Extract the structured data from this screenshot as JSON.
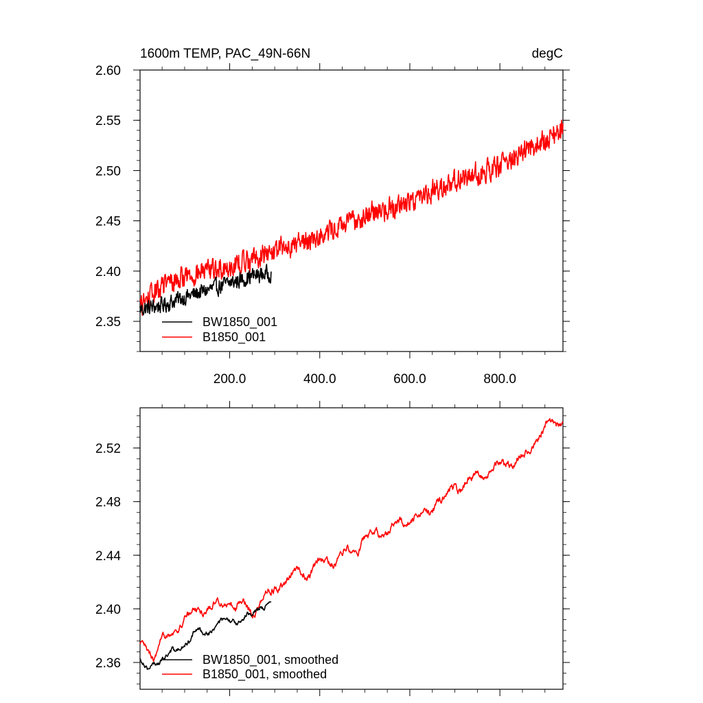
{
  "chart_data": [
    {
      "type": "line",
      "title": "1600m TEMP, PAC_49N-66N",
      "units": "degC",
      "xlabel": "",
      "ylabel": "",
      "xlim": [
        1,
        940
      ],
      "ylim": [
        2.32,
        2.6
      ],
      "xticks": [
        200,
        400,
        600,
        800
      ],
      "xtick_labels": [
        "200.0",
        "400.0",
        "600.0",
        "800.0"
      ],
      "yticks": [
        2.35,
        2.4,
        2.45,
        2.5,
        2.55,
        2.6
      ],
      "ytick_labels": [
        "2.35",
        "2.40",
        "2.45",
        "2.50",
        "2.55",
        "2.60"
      ],
      "legend_position": "bottom-left",
      "series": [
        {
          "name": "BW1850_001",
          "color": "#000000",
          "x_start": 1,
          "x_end": 292,
          "trend": [
            [
              1,
              2.362
            ],
            [
              50,
              2.366
            ],
            [
              100,
              2.374
            ],
            [
              150,
              2.381
            ],
            [
              200,
              2.388
            ],
            [
              250,
              2.395
            ],
            [
              292,
              2.398
            ]
          ],
          "noise_amplitude": 0.008
        },
        {
          "name": "B1850_001",
          "color": "#ff0000",
          "x_start": 1,
          "x_end": 940,
          "trend": [
            [
              1,
              2.365
            ],
            [
              50,
              2.385
            ],
            [
              100,
              2.395
            ],
            [
              200,
              2.405
            ],
            [
              300,
              2.42
            ],
            [
              400,
              2.435
            ],
            [
              500,
              2.455
            ],
            [
              600,
              2.47
            ],
            [
              700,
              2.49
            ],
            [
              800,
              2.505
            ],
            [
              900,
              2.53
            ],
            [
              940,
              2.54
            ]
          ],
          "noise_amplitude": 0.011
        }
      ]
    },
    {
      "type": "line",
      "title": "",
      "units": "",
      "xlabel": "",
      "ylabel": "",
      "xlim": [
        1,
        940
      ],
      "ylim": [
        2.34,
        2.55
      ],
      "xticks": [
        200,
        400,
        600,
        800
      ],
      "xtick_labels": [],
      "yticks": [
        2.36,
        2.4,
        2.44,
        2.48,
        2.52
      ],
      "ytick_labels": [
        "2.36",
        "2.40",
        "2.44",
        "2.48",
        "2.52"
      ],
      "legend_position": "bottom-left",
      "series": [
        {
          "name": "BW1850_001, smoothed",
          "color": "#000000",
          "x_start": 1,
          "x_end": 292,
          "trend": [
            [
              1,
              2.362
            ],
            [
              20,
              2.354
            ],
            [
              40,
              2.362
            ],
            [
              80,
              2.368
            ],
            [
              120,
              2.38
            ],
            [
              160,
              2.386
            ],
            [
              200,
              2.39
            ],
            [
              240,
              2.394
            ],
            [
              270,
              2.405
            ],
            [
              292,
              2.4
            ]
          ],
          "noise_amplitude": 0.003
        },
        {
          "name": "B1850_001, smoothed",
          "color": "#ff0000",
          "x_start": 1,
          "x_end": 940,
          "trend": [
            [
              1,
              2.37
            ],
            [
              30,
              2.364
            ],
            [
              60,
              2.378
            ],
            [
              100,
              2.393
            ],
            [
              150,
              2.402
            ],
            [
              200,
              2.405
            ],
            [
              250,
              2.4
            ],
            [
              300,
              2.415
            ],
            [
              350,
              2.425
            ],
            [
              400,
              2.432
            ],
            [
              450,
              2.44
            ],
            [
              500,
              2.452
            ],
            [
              550,
              2.46
            ],
            [
              600,
              2.465
            ],
            [
              650,
              2.475
            ],
            [
              700,
              2.49
            ],
            [
              750,
              2.5
            ],
            [
              800,
              2.507
            ],
            [
              850,
              2.513
            ],
            [
              900,
              2.535
            ],
            [
              940,
              2.54
            ]
          ],
          "noise_amplitude": 0.004
        }
      ]
    }
  ]
}
